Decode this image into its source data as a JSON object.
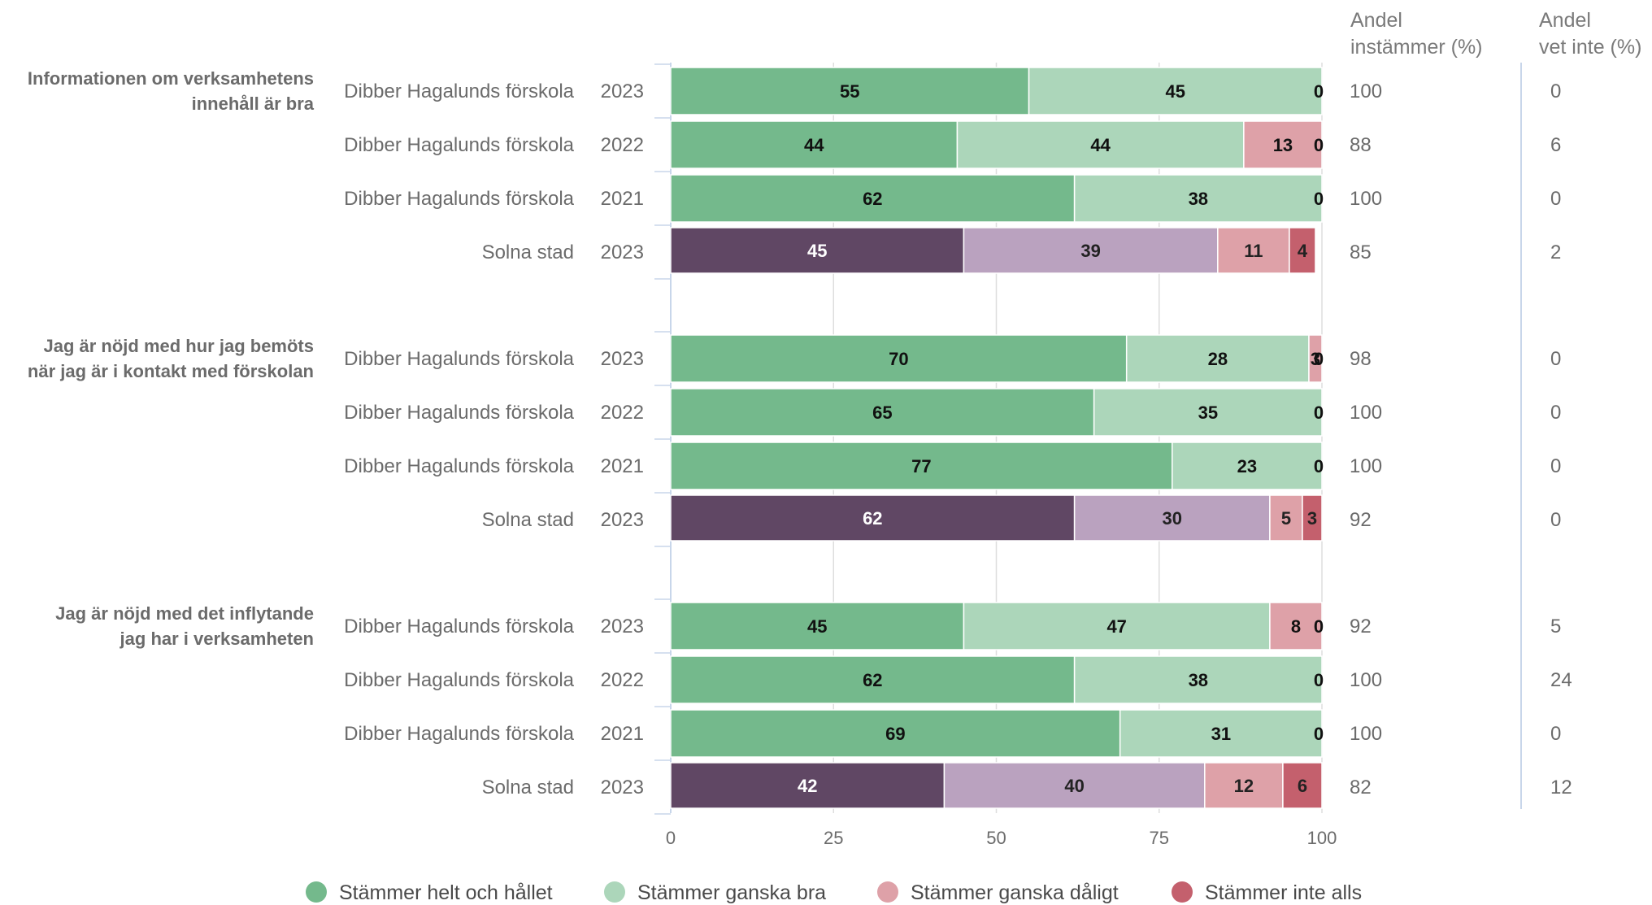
{
  "colors": {
    "helt_school": "#74b98c",
    "ganska_bra_school": "#acd6ba",
    "helt_city": "#604764",
    "ganska_bra_city": "#baa2bf",
    "ganska_daligt": "#dea1a8",
    "inte_alls": "#c4606d",
    "grid": "#dedede",
    "axis": "#c8d6ea"
  },
  "headers": {
    "andel_instammer_line1": "Andel",
    "andel_instammer_line2": "instämmer (%)",
    "andel_vet_inte_line1": "Andel",
    "andel_vet_inte_line2": "vet inte (%)"
  },
  "legend": [
    {
      "label": "Stämmer helt och hållet",
      "color": "#74b98c"
    },
    {
      "label": "Stämmer ganska bra",
      "color": "#acd6ba"
    },
    {
      "label": "Stämmer ganska dåligt",
      "color": "#dea1a8"
    },
    {
      "label": "Stämmer inte alls",
      "color": "#c4606d"
    }
  ],
  "chart_data": {
    "type": "bar",
    "orientation": "horizontal",
    "stacked": true,
    "xlim": [
      0,
      100
    ],
    "xticks": [
      0,
      25,
      50,
      75,
      100
    ],
    "grid": true,
    "legend_position": "bottom",
    "series_names": [
      "Stämmer helt och hållet",
      "Stämmer ganska bra",
      "Stämmer ganska dåligt",
      "Stämmer inte alls"
    ],
    "groups": [
      {
        "question_lines": [
          "Informationen om verksamhetens",
          "innehåll är bra"
        ],
        "rows": [
          {
            "org": "Dibber Hagalunds förskola",
            "year": "2023",
            "kind": "school",
            "values": [
              55,
              45,
              0,
              0
            ],
            "instammer": "100",
            "vet_inte": "0"
          },
          {
            "org": "Dibber Hagalunds förskola",
            "year": "2022",
            "kind": "school",
            "values": [
              44,
              44,
              13,
              0
            ],
            "instammer": "88",
            "vet_inte": "6"
          },
          {
            "org": "Dibber Hagalunds förskola",
            "year": "2021",
            "kind": "school",
            "values": [
              62,
              38,
              0,
              0
            ],
            "instammer": "100",
            "vet_inte": "0"
          },
          {
            "org": "Solna stad",
            "year": "2023",
            "kind": "city",
            "values": [
              45,
              39,
              11,
              4
            ],
            "instammer": "85",
            "vet_inte": "2"
          }
        ]
      },
      {
        "question_lines": [
          "Jag är nöjd med hur jag bemöts",
          "när jag är i kontakt med förskolan"
        ],
        "rows": [
          {
            "org": "Dibber Hagalunds förskola",
            "year": "2023",
            "kind": "school",
            "values": [
              70,
              28,
              3,
              0
            ],
            "instammer": "98",
            "vet_inte": "0"
          },
          {
            "org": "Dibber Hagalunds förskola",
            "year": "2022",
            "kind": "school",
            "values": [
              65,
              35,
              0,
              0
            ],
            "instammer": "100",
            "vet_inte": "0"
          },
          {
            "org": "Dibber Hagalunds förskola",
            "year": "2021",
            "kind": "school",
            "values": [
              77,
              23,
              0,
              0
            ],
            "instammer": "100",
            "vet_inte": "0"
          },
          {
            "org": "Solna stad",
            "year": "2023",
            "kind": "city",
            "values": [
              62,
              30,
              5,
              3
            ],
            "instammer": "92",
            "vet_inte": "0"
          }
        ]
      },
      {
        "question_lines": [
          "Jag är nöjd med det inflytande",
          "jag har i verksamheten"
        ],
        "rows": [
          {
            "org": "Dibber Hagalunds förskola",
            "year": "2023",
            "kind": "school",
            "values": [
              45,
              47,
              8,
              0
            ],
            "instammer": "92",
            "vet_inte": "5"
          },
          {
            "org": "Dibber Hagalunds förskola",
            "year": "2022",
            "kind": "school",
            "values": [
              62,
              38,
              0,
              0
            ],
            "instammer": "100",
            "vet_inte": "24"
          },
          {
            "org": "Dibber Hagalunds förskola",
            "year": "2021",
            "kind": "school",
            "values": [
              69,
              31,
              0,
              0
            ],
            "instammer": "100",
            "vet_inte": "0"
          },
          {
            "org": "Solna stad",
            "year": "2023",
            "kind": "city",
            "values": [
              42,
              40,
              12,
              6
            ],
            "instammer": "82",
            "vet_inte": "12"
          }
        ]
      }
    ]
  }
}
